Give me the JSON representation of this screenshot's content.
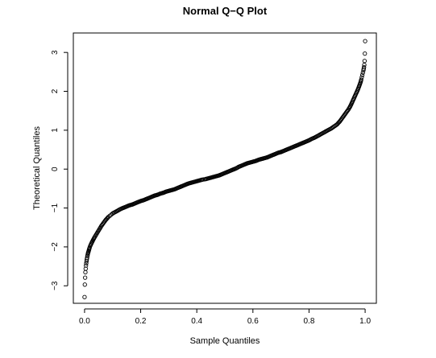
{
  "chart_data": {
    "type": "scatter",
    "title": "Normal Q−Q Plot",
    "xlabel": "Sample Quantiles",
    "ylabel": "Theoretical Quantiles",
    "xlim": [
      -0.04,
      1.04
    ],
    "ylim": [
      -3.45,
      3.5
    ],
    "x_ticks": [
      0.0,
      0.2,
      0.4,
      0.6,
      0.8,
      1.0
    ],
    "x_tick_labels": [
      "0.0",
      "0.2",
      "0.4",
      "0.6",
      "0.8",
      "1.0"
    ],
    "y_ticks": [
      -3,
      -2,
      -1,
      0,
      1,
      2,
      3
    ],
    "y_tick_labels": [
      "−3",
      "−2",
      "−1",
      "0",
      "1",
      "2",
      "3"
    ],
    "marker": "open-circle",
    "grid": false,
    "legend": "none",
    "series": [
      {
        "points": [
          [
            0.0,
            -3.29
          ],
          [
            0.001,
            -2.97
          ],
          [
            0.002,
            -2.79
          ],
          [
            0.003,
            -2.65
          ],
          [
            0.004,
            -2.56
          ],
          [
            0.005,
            -2.48
          ],
          [
            0.006,
            -2.42
          ],
          [
            0.007,
            -2.37
          ],
          [
            0.008,
            -2.32
          ],
          [
            0.009,
            -2.28
          ],
          [
            0.01,
            -2.24
          ],
          [
            0.012,
            -2.17
          ],
          [
            0.014,
            -2.12
          ],
          [
            0.016,
            -2.07
          ],
          [
            0.018,
            -2.02
          ],
          [
            0.02,
            -1.98
          ],
          [
            0.025,
            -1.9
          ],
          [
            0.03,
            -1.83
          ],
          [
            0.035,
            -1.76
          ],
          [
            0.04,
            -1.7
          ],
          [
            0.045,
            -1.64
          ],
          [
            0.05,
            -1.58
          ],
          [
            0.055,
            -1.52
          ],
          [
            0.06,
            -1.46
          ],
          [
            0.065,
            -1.41
          ],
          [
            0.07,
            -1.36
          ],
          [
            0.075,
            -1.31
          ],
          [
            0.08,
            -1.27
          ],
          [
            0.085,
            -1.23
          ],
          [
            0.09,
            -1.2
          ],
          [
            0.095,
            -1.17
          ],
          [
            0.1,
            -1.14
          ],
          [
            0.11,
            -1.1
          ],
          [
            0.12,
            -1.06
          ],
          [
            0.13,
            -1.02
          ],
          [
            0.14,
            -0.99
          ],
          [
            0.15,
            -0.96
          ],
          [
            0.16,
            -0.93
          ],
          [
            0.17,
            -0.91
          ],
          [
            0.18,
            -0.88
          ],
          [
            0.19,
            -0.85
          ],
          [
            0.2,
            -0.82
          ],
          [
            0.21,
            -0.8
          ],
          [
            0.22,
            -0.77
          ],
          [
            0.23,
            -0.74
          ],
          [
            0.24,
            -0.71
          ],
          [
            0.25,
            -0.68
          ],
          [
            0.26,
            -0.66
          ],
          [
            0.27,
            -0.63
          ],
          [
            0.28,
            -0.61
          ],
          [
            0.29,
            -0.58
          ],
          [
            0.3,
            -0.56
          ],
          [
            0.31,
            -0.54
          ],
          [
            0.32,
            -0.52
          ],
          [
            0.33,
            -0.49
          ],
          [
            0.34,
            -0.46
          ],
          [
            0.35,
            -0.43
          ],
          [
            0.36,
            -0.4
          ],
          [
            0.37,
            -0.37
          ],
          [
            0.38,
            -0.35
          ],
          [
            0.39,
            -0.33
          ],
          [
            0.4,
            -0.31
          ],
          [
            0.41,
            -0.29
          ],
          [
            0.42,
            -0.27
          ],
          [
            0.43,
            -0.26
          ],
          [
            0.44,
            -0.24
          ],
          [
            0.45,
            -0.22
          ],
          [
            0.46,
            -0.2
          ],
          [
            0.47,
            -0.18
          ],
          [
            0.48,
            -0.16
          ],
          [
            0.49,
            -0.13
          ],
          [
            0.5,
            -0.1
          ],
          [
            0.51,
            -0.07
          ],
          [
            0.52,
            -0.04
          ],
          [
            0.53,
            -0.01
          ],
          [
            0.54,
            0.02
          ],
          [
            0.55,
            0.06
          ],
          [
            0.56,
            0.09
          ],
          [
            0.57,
            0.12
          ],
          [
            0.58,
            0.15
          ],
          [
            0.59,
            0.17
          ],
          [
            0.6,
            0.19
          ],
          [
            0.61,
            0.21
          ],
          [
            0.62,
            0.24
          ],
          [
            0.63,
            0.26
          ],
          [
            0.64,
            0.28
          ],
          [
            0.65,
            0.3
          ],
          [
            0.66,
            0.33
          ],
          [
            0.67,
            0.36
          ],
          [
            0.68,
            0.39
          ],
          [
            0.69,
            0.42
          ],
          [
            0.7,
            0.44
          ],
          [
            0.71,
            0.47
          ],
          [
            0.72,
            0.5
          ],
          [
            0.73,
            0.53
          ],
          [
            0.74,
            0.56
          ],
          [
            0.75,
            0.59
          ],
          [
            0.76,
            0.62
          ],
          [
            0.77,
            0.65
          ],
          [
            0.78,
            0.68
          ],
          [
            0.79,
            0.71
          ],
          [
            0.8,
            0.74
          ],
          [
            0.81,
            0.78
          ],
          [
            0.82,
            0.81
          ],
          [
            0.83,
            0.85
          ],
          [
            0.84,
            0.89
          ],
          [
            0.85,
            0.93
          ],
          [
            0.86,
            0.97
          ],
          [
            0.87,
            1.01
          ],
          [
            0.88,
            1.05
          ],
          [
            0.89,
            1.1
          ],
          [
            0.9,
            1.15
          ],
          [
            0.905,
            1.19
          ],
          [
            0.91,
            1.23
          ],
          [
            0.915,
            1.28
          ],
          [
            0.92,
            1.33
          ],
          [
            0.925,
            1.38
          ],
          [
            0.93,
            1.43
          ],
          [
            0.935,
            1.48
          ],
          [
            0.94,
            1.53
          ],
          [
            0.945,
            1.59
          ],
          [
            0.95,
            1.66
          ],
          [
            0.955,
            1.74
          ],
          [
            0.96,
            1.82
          ],
          [
            0.965,
            1.9
          ],
          [
            0.97,
            1.98
          ],
          [
            0.975,
            2.06
          ],
          [
            0.978,
            2.12
          ],
          [
            0.981,
            2.18
          ],
          [
            0.984,
            2.24
          ],
          [
            0.986,
            2.3
          ],
          [
            0.988,
            2.36
          ],
          [
            0.99,
            2.42
          ],
          [
            0.992,
            2.48
          ],
          [
            0.994,
            2.54
          ],
          [
            0.995,
            2.58
          ],
          [
            0.996,
            2.62
          ],
          [
            0.997,
            2.68
          ],
          [
            0.998,
            2.78
          ],
          [
            0.999,
            2.97
          ],
          [
            1.0,
            3.29
          ]
        ]
      }
    ]
  }
}
